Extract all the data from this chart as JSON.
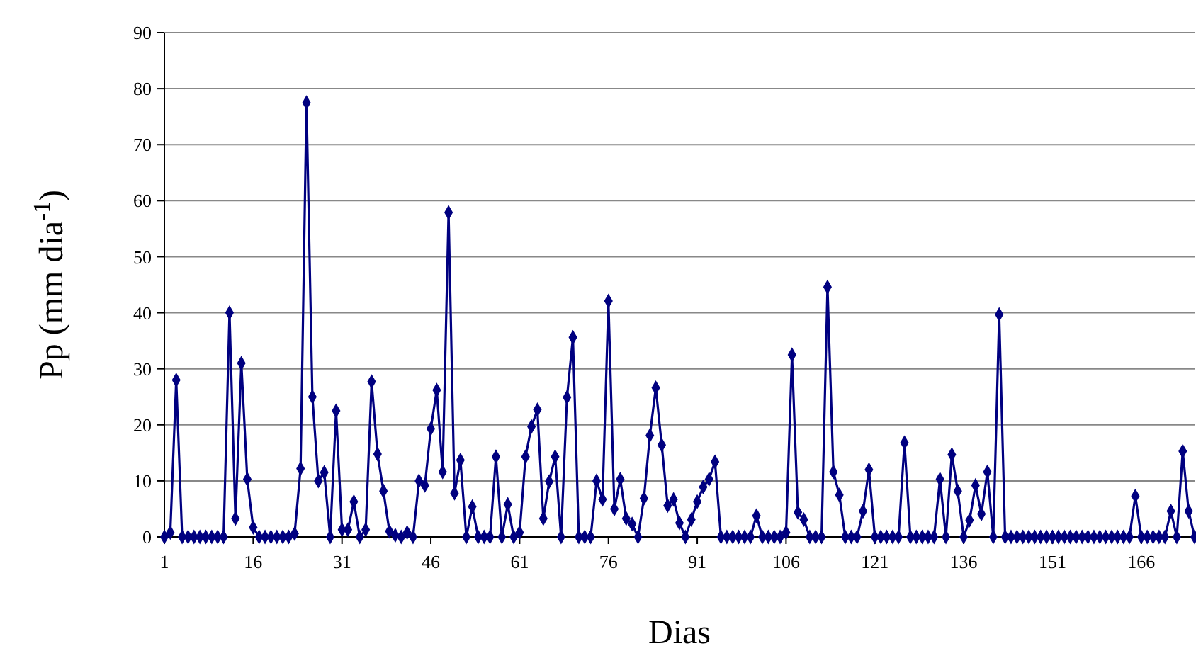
{
  "chart_data": {
    "type": "line",
    "xlabel": "Dias",
    "ylabel": "Pp (mm dia$^{-1}$)",
    "x": [
      1,
      2,
      3,
      4,
      5,
      6,
      7,
      8,
      9,
      10,
      11,
      12,
      13,
      14,
      15,
      16,
      17,
      18,
      19,
      20,
      21,
      22,
      23,
      24,
      25,
      26,
      27,
      28,
      29,
      30,
      31,
      32,
      33,
      34,
      35,
      36,
      37,
      38,
      39,
      40,
      41,
      42,
      43,
      44,
      45,
      46,
      47,
      48,
      49,
      50,
      51,
      52,
      53,
      54,
      55,
      56,
      57,
      58,
      59,
      60,
      61,
      62,
      63,
      64,
      65,
      66,
      67,
      68,
      69,
      70,
      71,
      72,
      73,
      74,
      75,
      76,
      77,
      78,
      79,
      80,
      81,
      82,
      83,
      84,
      85,
      86,
      87,
      88,
      89,
      90,
      91,
      92,
      93,
      94,
      95,
      96,
      97,
      98,
      99,
      100,
      101,
      102,
      103,
      104,
      105,
      106,
      107,
      108,
      109,
      110,
      111,
      112,
      113,
      114,
      115,
      116,
      117,
      118,
      119,
      120,
      121,
      122,
      123,
      124,
      125,
      126,
      127,
      128,
      129,
      130,
      131,
      132,
      133,
      134,
      135,
      136,
      137,
      138,
      139,
      140,
      141,
      142,
      143,
      144,
      145,
      146,
      147,
      148,
      149,
      150,
      151,
      152,
      153,
      154,
      155,
      156,
      157,
      158,
      159,
      160,
      161,
      162,
      163,
      164,
      165,
      166,
      167,
      168,
      169,
      170,
      171,
      172,
      173,
      174,
      175
    ],
    "series": [
      {
        "color": "#000080",
        "values": [
          0,
          0.8,
          28,
          0,
          0,
          0,
          0,
          0,
          0,
          0,
          0,
          40,
          3.3,
          31,
          10.3,
          1.7,
          0,
          0,
          0,
          0,
          0,
          0,
          0.6,
          12.2,
          77.5,
          25,
          10,
          11.5,
          0,
          22.5,
          1.3,
          1.3,
          6.3,
          0,
          1.3,
          27.7,
          14.8,
          8.2,
          1,
          0.3,
          0,
          0.8,
          0,
          10,
          9.2,
          19.3,
          26.2,
          11.6,
          57.9,
          7.8,
          13.7,
          0,
          5.4,
          0,
          0,
          0,
          14.3,
          0,
          5.8,
          0,
          0.8,
          14.3,
          19.7,
          22.7,
          3.3,
          9.9,
          14.3,
          0,
          24.9,
          35.6,
          0,
          0,
          0,
          10,
          6.7,
          42.1,
          5,
          10.3,
          3.3,
          2.3,
          0,
          6.9,
          18.1,
          26.6,
          16.4,
          5.6,
          6.7,
          2.5,
          0,
          3.1,
          6.3,
          8.9,
          10.3,
          13.4,
          0,
          0,
          0,
          0,
          0,
          0,
          3.8,
          0,
          0,
          0,
          0,
          0.8,
          32.5,
          4.4,
          3.1,
          0,
          0,
          0,
          44.6,
          11.6,
          7.5,
          0,
          0,
          0,
          4.6,
          12,
          0,
          0,
          0,
          0,
          0,
          16.8,
          0,
          0,
          0,
          0,
          0,
          10.3,
          0,
          14.7,
          8.2,
          0,
          3,
          9.2,
          4.1,
          11.6,
          0,
          39.7,
          0,
          0,
          0,
          0,
          0,
          0,
          0,
          0,
          0,
          0,
          0,
          0,
          0,
          0,
          0,
          0,
          0,
          0,
          0,
          0,
          0,
          0,
          7.3,
          0,
          0,
          0,
          0,
          0,
          4.6,
          0,
          15.3,
          4.6,
          0
        ]
      }
    ],
    "xlim": [
      1,
      175
    ],
    "xticks": [
      1,
      16,
      31,
      46,
      61,
      76,
      91,
      106,
      121,
      136,
      151,
      166
    ],
    "ylim": [
      0,
      90
    ],
    "yticks": [
      0,
      10,
      20,
      30,
      40,
      50,
      60,
      70,
      80,
      90
    ],
    "grid": "y",
    "marker": "diamond",
    "line_style": "solid"
  }
}
